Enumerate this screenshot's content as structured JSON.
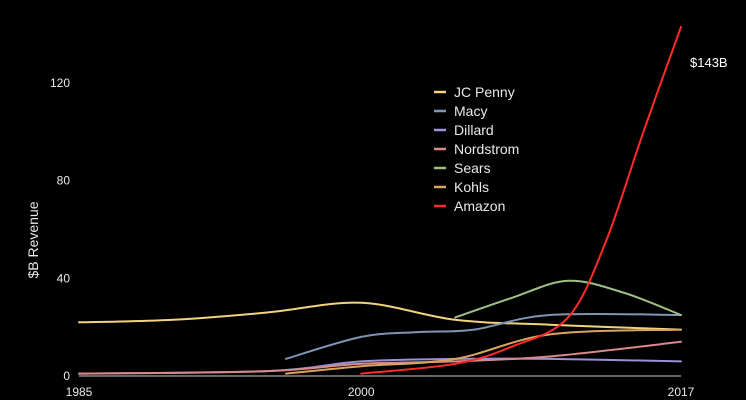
{
  "chart_data": {
    "type": "line",
    "title": "",
    "xlabel": "",
    "ylabel": "$B Revenue",
    "xlim": [
      1985,
      2017
    ],
    "ylim": [
      0,
      145
    ],
    "x_ticks": [
      "1985",
      "2000",
      "2017"
    ],
    "y_ticks": [
      "0",
      "40",
      "80",
      "120"
    ],
    "grid": false,
    "legend_position": "top-center",
    "annotation": {
      "text": "$143B",
      "series": "Amazon"
    },
    "series": [
      {
        "name": "JC Penny",
        "color": "#f2d27a",
        "x": [
          1985,
          1990,
          1995,
          2000,
          2005,
          2010,
          2017
        ],
        "y": [
          22,
          23,
          26,
          30,
          23,
          21,
          19
        ]
      },
      {
        "name": "Macy",
        "color": "#7f93b3",
        "x": [
          1996,
          2000,
          2003,
          2006,
          2010,
          2017
        ],
        "y": [
          7,
          16,
          18,
          19,
          25,
          25
        ]
      },
      {
        "name": "Dillard",
        "color": "#9b8fd6",
        "x": [
          1985,
          1995,
          2000,
          2005,
          2010,
          2017
        ],
        "y": [
          1,
          2,
          6,
          7,
          7,
          6
        ]
      },
      {
        "name": "Nordstrom",
        "color": "#d88a8a",
        "x": [
          1985,
          1995,
          2000,
          2005,
          2010,
          2017
        ],
        "y": [
          1,
          2,
          5,
          6,
          8,
          14
        ]
      },
      {
        "name": "Sears",
        "color": "#9fbf86",
        "x": [
          2005,
          2008,
          2011,
          2014,
          2017
        ],
        "y": [
          24,
          32,
          39,
          34,
          25
        ]
      },
      {
        "name": "Kohls",
        "color": "#d9a45e",
        "x": [
          1996,
          2000,
          2005,
          2010,
          2017
        ],
        "y": [
          1,
          4,
          7,
          17,
          19
        ]
      },
      {
        "name": "Amazon",
        "color": "#ff2a2a",
        "x": [
          2000,
          2005,
          2008,
          2011,
          2013,
          2015,
          2017
        ],
        "y": [
          1,
          5,
          12,
          24,
          55,
          100,
          143
        ]
      }
    ]
  }
}
